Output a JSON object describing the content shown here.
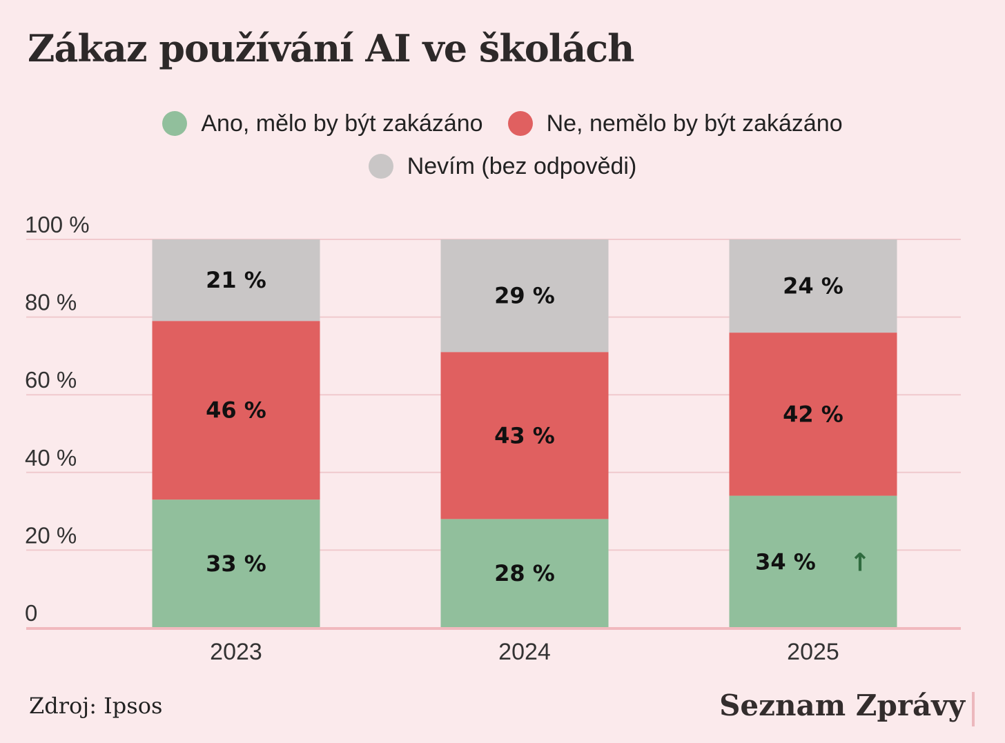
{
  "title": "Zákaz používání AI ve školách",
  "legend": [
    {
      "label": "Ano, mělo by být zakázáno",
      "color": "#91bf9c"
    },
    {
      "label": "Ne, nemělo by být zakázáno",
      "color": "#e06060"
    },
    {
      "label": "Nevím (bez odpovědi)",
      "color": "#c9c6c6"
    }
  ],
  "source": "Zdroj: Ipsos",
  "brand": "Seznam Zprávy",
  "chart_data": {
    "type": "bar",
    "stacked": true,
    "title": "Zákaz používání AI ve školách",
    "categories": [
      "2023",
      "2024",
      "2025"
    ],
    "series": [
      {
        "name": "Ano, mělo by být zakázáno",
        "values": [
          33,
          28,
          34
        ],
        "labels": [
          "33 %",
          "28 %",
          "34 %"
        ],
        "color": "#91bf9c"
      },
      {
        "name": "Ne, nemělo by být zakázáno",
        "values": [
          46,
          43,
          42
        ],
        "labels": [
          "46 %",
          "43 %",
          "42 %"
        ],
        "color": "#e06060"
      },
      {
        "name": "Nevím (bez odpovědi)",
        "values": [
          21,
          29,
          24
        ],
        "labels": [
          "21 %",
          "29 %",
          "24 %"
        ],
        "color": "#c9c6c6"
      }
    ],
    "ylim": [
      0,
      100
    ],
    "yticks": [
      0,
      20,
      40,
      60,
      80,
      100
    ],
    "ytick_labels": [
      "0",
      "20 %",
      "40 %",
      "60 %",
      "80 %",
      "100 %"
    ],
    "annotation": {
      "category": "2025",
      "series": "Ano, mělo by být zakázáno",
      "symbol": "↑",
      "color": "#2f6b3f"
    },
    "grid": true,
    "gridline_color": "#f0c9cd",
    "xlabel": "",
    "ylabel": ""
  }
}
